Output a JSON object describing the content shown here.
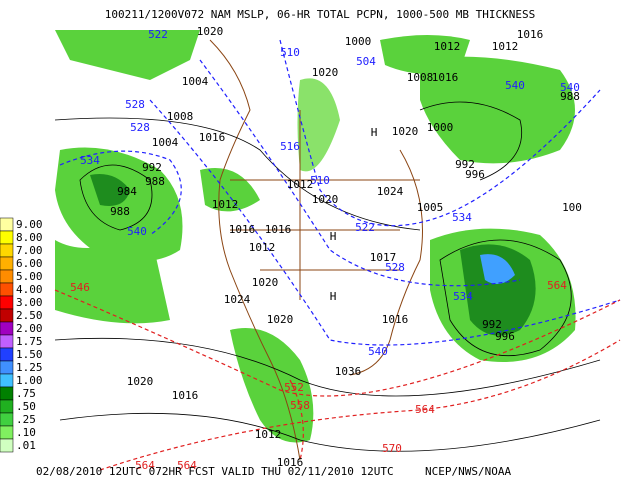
{
  "header": {
    "title": "100211/1200V072 NAM MSLP, 06-HR TOTAL PCPN, 1000-500 MB THICKNESS"
  },
  "footer": {
    "run": "02/08/2010 12UTC 072HR FCST VALID THU 02/11/2010 12UTC",
    "source": "NCEP/NWS/NOAA"
  },
  "precip_legend": {
    "labels": [
      "9.00",
      "8.00",
      "7.00",
      "6.00",
      "5.00",
      "4.00",
      "3.00",
      "2.50",
      "2.00",
      "1.75",
      "1.50",
      "1.25",
      "1.00",
      ".75",
      ".50",
      ".25",
      ".10",
      ".01"
    ],
    "colors": [
      "#ffffa0",
      "#ffff00",
      "#ffd700",
      "#ffb000",
      "#ff8c00",
      "#ff5000",
      "#ff0000",
      "#c00000",
      "#a000c0",
      "#c060ff",
      "#2040ff",
      "#4090ff",
      "#40c0ff",
      "#008000",
      "#20b020",
      "#40d040",
      "#80f060",
      "#d0ffc0"
    ]
  },
  "pressure_labels": [
    "1020",
    "1024",
    "1020",
    "1016",
    "1016",
    "1012",
    "1016",
    "1012",
    "1020",
    "1024",
    "1020",
    "1016",
    "1017",
    "1020",
    "1016",
    "1012",
    "1016",
    "1000",
    "992",
    "996",
    "1005",
    "1000",
    "1012",
    "1012",
    "1016",
    "1008",
    "1016",
    "1004",
    "1008",
    "1004",
    "992",
    "988",
    "984",
    "988",
    "1036",
    "1020",
    "996",
    "992",
    "100",
    "988",
    "1020",
    "1012"
  ],
  "highs": [
    "H",
    "H",
    "H"
  ],
  "thickness_labels": [
    "534",
    "540",
    "528",
    "528",
    "516",
    "510",
    "522",
    "528",
    "534",
    "540",
    "540",
    "540",
    "510",
    "504",
    "522",
    "534"
  ],
  "warm_thickness_labels": [
    "546",
    "552",
    "558",
    "564",
    "570",
    "564",
    "564",
    "564"
  ]
}
